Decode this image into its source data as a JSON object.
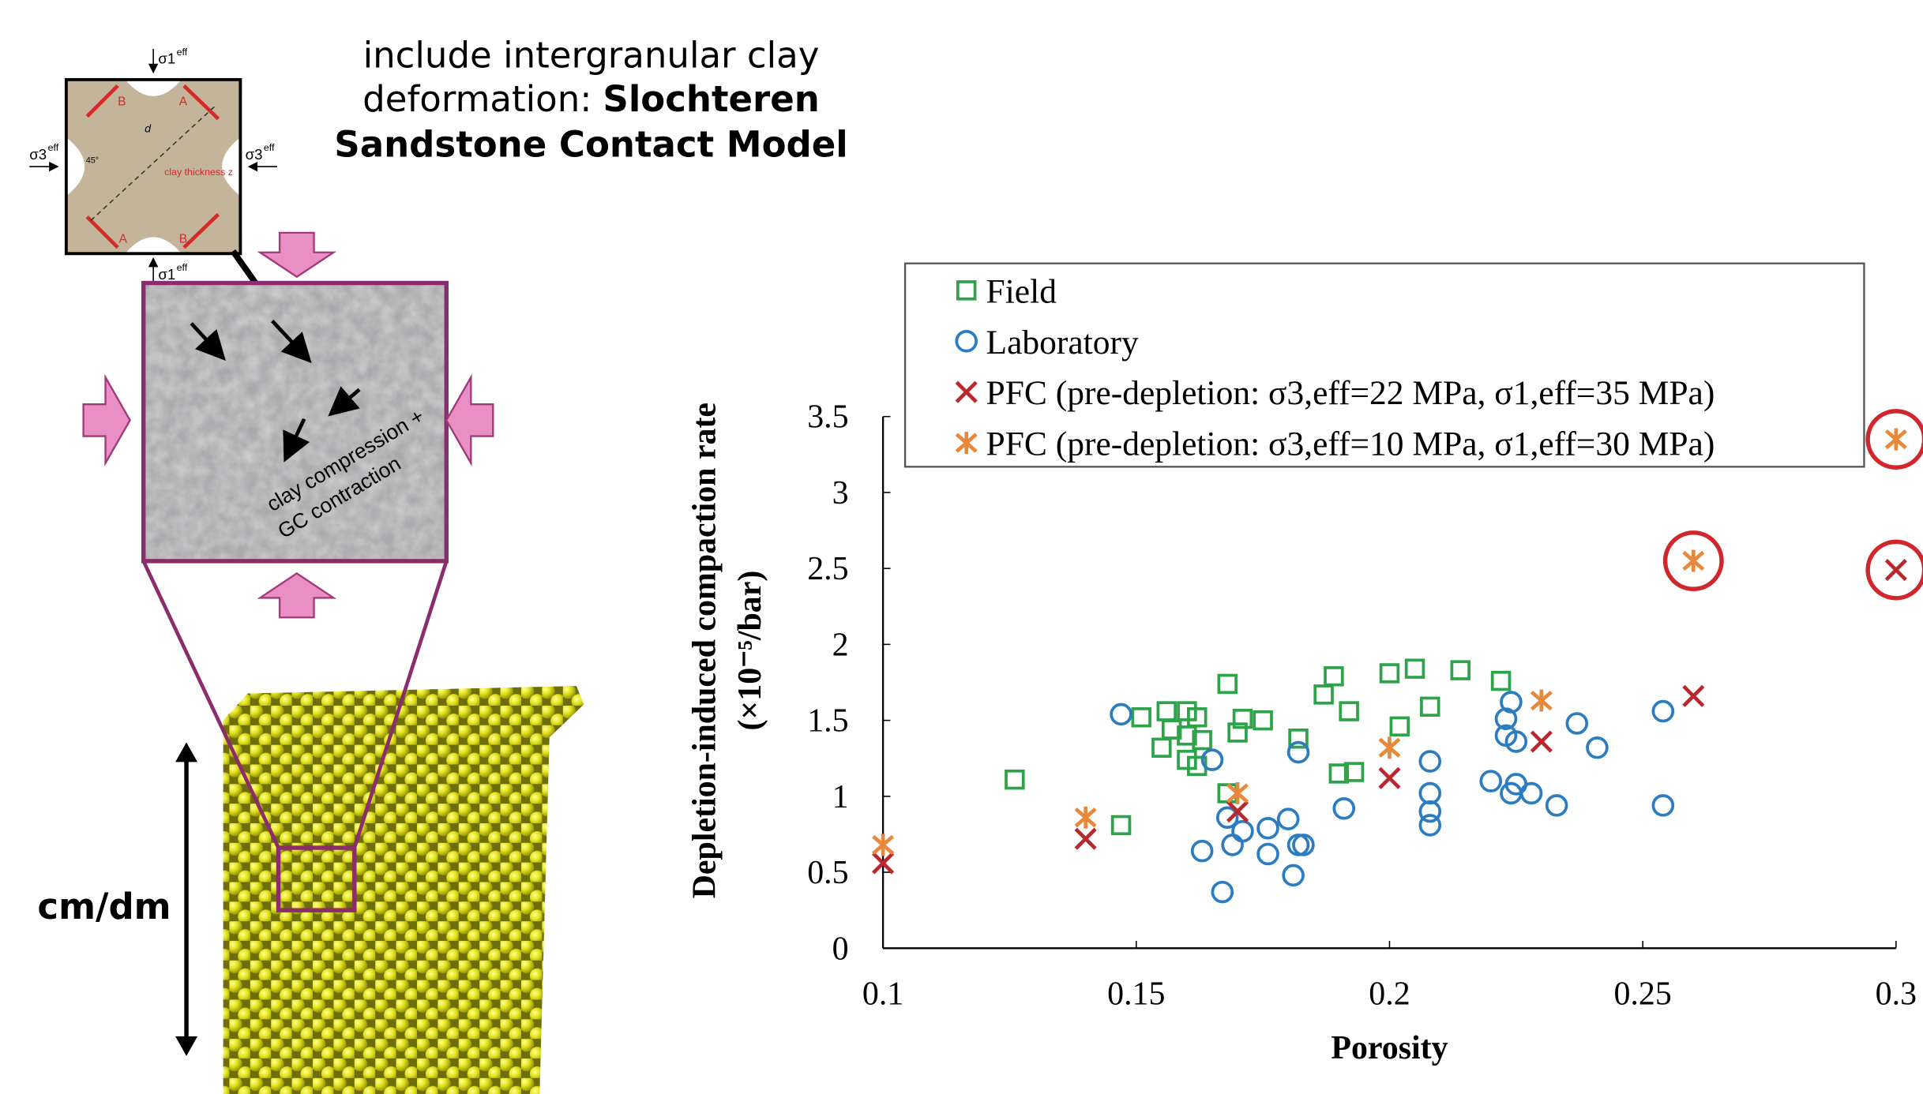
{
  "caption": [
    "include intergranular clay",
    "deformation:",
    "Slochteren",
    "Sandstone Contact Model"
  ],
  "contact_model": {
    "sigma1": "σ1",
    "sigma3": "σ3",
    "eff": "eff",
    "corner_a": "A",
    "corner_b": "B",
    "clay_thickness": "clay thickness z",
    "angle": "45°",
    "d": "d"
  },
  "micrograph_label": [
    "clay compression +",
    "GC contraction"
  ],
  "scale_label": "cm/dm",
  "chart_data": {
    "type": "scatter",
    "xlabel": "Porosity",
    "ylabel": "Depletion-induced compaction rate",
    "ylabel_unit": "(×10⁻⁵/bar)",
    "xlim": [
      0.1,
      0.3
    ],
    "xticks": [
      0.1,
      0.15,
      0.2,
      0.25,
      0.3
    ],
    "ylim": [
      0,
      3.5
    ],
    "yticks": [
      0,
      0.5,
      1,
      1.5,
      2,
      2.5,
      3,
      3.5
    ],
    "legend": "upper",
    "highlight_color": "#d0262c",
    "series": [
      {
        "name": "Field",
        "color": "#2ea34a",
        "marker": "square",
        "x": [
          0.126,
          0.147,
          0.151,
          0.156,
          0.16,
          0.162,
          0.157,
          0.16,
          0.163,
          0.155,
          0.16,
          0.162,
          0.168,
          0.171,
          0.175,
          0.17,
          0.182,
          0.168,
          0.187,
          0.189,
          0.192,
          0.19,
          0.193,
          0.2,
          0.205,
          0.202,
          0.208,
          0.214,
          0.222
        ],
        "y": [
          1.11,
          0.81,
          1.52,
          1.56,
          1.56,
          1.52,
          1.44,
          1.4,
          1.37,
          1.32,
          1.24,
          1.2,
          1.74,
          1.51,
          1.5,
          1.42,
          1.38,
          1.02,
          1.67,
          1.79,
          1.56,
          1.15,
          1.16,
          1.81,
          1.84,
          1.46,
          1.59,
          1.83,
          1.76
        ]
      },
      {
        "name": "Laboratory",
        "color": "#2b7cc0",
        "marker": "circle",
        "x": [
          0.147,
          0.165,
          0.163,
          0.167,
          0.168,
          0.169,
          0.171,
          0.176,
          0.18,
          0.176,
          0.181,
          0.182,
          0.183,
          0.182,
          0.191,
          0.208,
          0.208,
          0.208,
          0.208,
          0.22,
          0.223,
          0.224,
          0.223,
          0.225,
          0.225,
          0.228,
          0.224,
          0.233,
          0.237,
          0.241,
          0.254,
          0.254
        ],
        "y": [
          1.54,
          1.24,
          0.64,
          0.37,
          0.86,
          0.68,
          0.77,
          0.79,
          0.85,
          0.62,
          0.48,
          0.68,
          0.68,
          1.29,
          0.92,
          1.23,
          1.02,
          0.9,
          0.81,
          1.1,
          1.51,
          1.62,
          1.4,
          1.36,
          1.08,
          1.02,
          1.02,
          0.94,
          1.48,
          1.32,
          1.56,
          0.94
        ]
      },
      {
        "name": "PFC (pre-depletion: σ3,eff=22 MPa, σ1,eff=35 MPa)",
        "color": "#b8282e",
        "marker": "x",
        "x": [
          0.1,
          0.14,
          0.17,
          0.2,
          0.23,
          0.26,
          0.3
        ],
        "y": [
          0.56,
          0.72,
          0.9,
          1.12,
          1.36,
          1.66,
          2.49
        ],
        "highlight": [
          6
        ]
      },
      {
        "name": "PFC (pre-depletion: σ3,eff=10 MPa, σ1,eff=30 MPa)",
        "color": "#e8883a",
        "marker": "asterisk",
        "x": [
          0.1,
          0.14,
          0.17,
          0.2,
          0.23,
          0.26,
          0.3
        ],
        "y": [
          0.68,
          0.86,
          1.02,
          1.32,
          1.63,
          2.55,
          3.35
        ],
        "highlight": [
          5,
          6
        ]
      }
    ]
  }
}
